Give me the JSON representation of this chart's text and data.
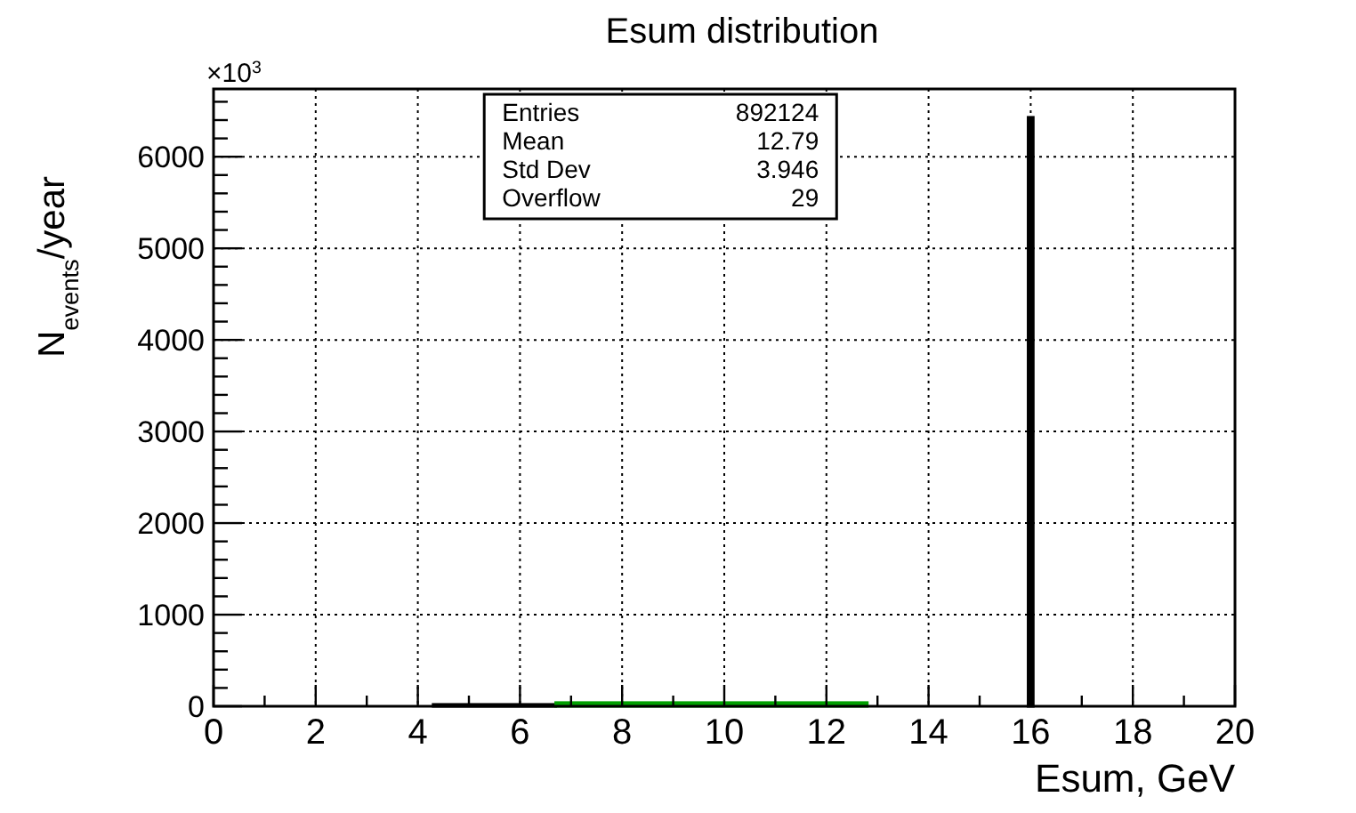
{
  "chart_data": {
    "type": "histogram",
    "title": "Esum  distribution",
    "xlabel": "Esum, GeV",
    "ylabel": "N$_{events}$/year",
    "bins": [
      4.3,
      6.7,
      12.8,
      15.95,
      16.05
    ],
    "values": [
      20,
      40,
      0,
      6430
    ],
    "colors": [
      "#000000",
      "#00a000",
      "#000000",
      "#000000"
    ],
    "xlim": [
      0,
      20
    ],
    "xticks": [
      0,
      2,
      4,
      6,
      8,
      10,
      12,
      14,
      16,
      18,
      20
    ],
    "ylim": [
      0,
      6740
    ],
    "yticks": [
      0,
      1000,
      2000,
      3000,
      4000,
      5000,
      6000
    ],
    "grid": true,
    "annotations": [
      "×10$^{3}$",
      "Entries",
      "892124",
      "Mean",
      "12.79",
      "Std Dev",
      "3.946",
      "Overflow",
      "29"
    ]
  }
}
